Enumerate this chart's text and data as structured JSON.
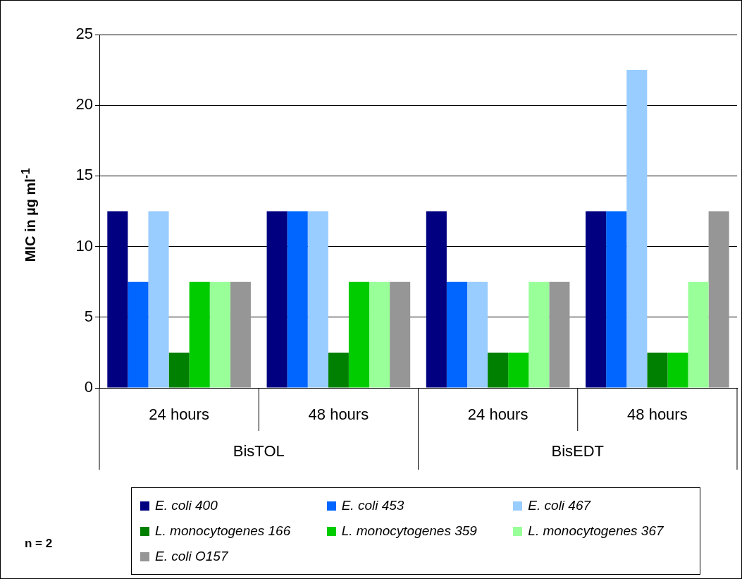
{
  "chart_data": {
    "type": "bar",
    "ylabel": "MIC in µg ml$^{-1}$",
    "categories": [
      "24 hours",
      "48 hours",
      "24 hours",
      "48 hours"
    ],
    "series": [
      {
        "name": "E. coli 400",
        "color": "#000080",
        "values": [
          12.5,
          12.5,
          12.5,
          12.5
        ]
      },
      {
        "name": "E. coli 453",
        "color": "#0066ff",
        "values": [
          7.5,
          12.5,
          7.5,
          12.5
        ]
      },
      {
        "name": "E. coli 467",
        "color": "#99ccff",
        "values": [
          12.5,
          12.5,
          7.5,
          22.5
        ]
      },
      {
        "name": "L. monocytogenes 166",
        "color": "#008000",
        "values": [
          2.5,
          2.5,
          2.5,
          2.5
        ]
      },
      {
        "name": "L. monocytogenes 359",
        "color": "#00cc00",
        "values": [
          7.5,
          7.5,
          2.5,
          2.5
        ]
      },
      {
        "name": "L. monocytogenes 367",
        "color": "#99ff99",
        "values": [
          7.5,
          7.5,
          7.5,
          7.5
        ]
      },
      {
        "name": "E. coli O157",
        "color": "#969696",
        "values": [
          7.5,
          7.5,
          7.5,
          12.5
        ]
      }
    ],
    "ylim": [
      0,
      25
    ],
    "yticks": [
      0,
      5,
      10,
      15,
      20,
      25
    ],
    "grid": "y",
    "legend": "bottom",
    "annotations": [
      "BisTOL",
      "BisEDT",
      "n = 2"
    ]
  }
}
